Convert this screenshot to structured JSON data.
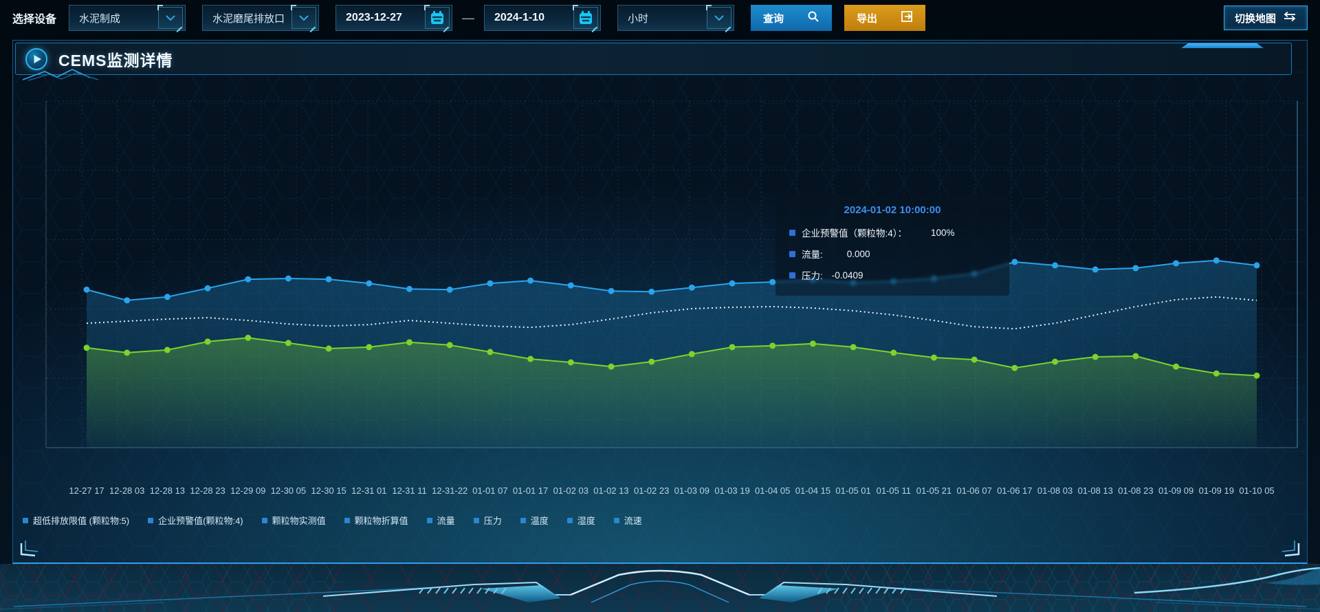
{
  "toolbar": {
    "device_label": "选择设备",
    "selects": [
      {
        "id": "device",
        "value": "水泥制成"
      },
      {
        "id": "outlet",
        "value": "水泥磨尾排放口"
      },
      {
        "id": "interval",
        "value": "小时"
      }
    ],
    "date_range": {
      "start": "2023-12-27",
      "end": "2024-1-10",
      "separator": "—"
    },
    "query_label": "查询",
    "export_label": "导出",
    "switch_map_label": "切换地图"
  },
  "panel": {
    "title": "CEMS监测详情"
  },
  "tooltip": {
    "title": "2024-01-02 10:00:00",
    "title_color": "#3e8ef0",
    "marker_color": "#2f6fd8",
    "items": [
      {
        "label": "企业预警值（颗粒物:4）：",
        "value": "100%"
      },
      {
        "label": "流量:",
        "value": "0.000"
      },
      {
        "label": "压力:",
        "value": "-0.0409"
      }
    ]
  },
  "chart_data": {
    "type": "line",
    "title": "",
    "xlabel": "",
    "ylabel": "",
    "ylim": [
      0,
      100
    ],
    "grid": true,
    "legend_position": "bottom",
    "y_axis_labels_visible": false,
    "note": "No y-axis tick labels are visible in the source; series values are estimated as percent of plot height.",
    "legend_entries": [
      "超低排放限值 (颗粒物:5)",
      "企业预警值(颗粒物:4)",
      "颗粒物实测值",
      "颗粒物折算值",
      "流量",
      "压力",
      "温度",
      "湿度",
      "流速"
    ],
    "categories": [
      "12-27 17",
      "12-28 03",
      "12-28 13",
      "12-28 23",
      "12-29 09",
      "12-30 05",
      "12-30 15",
      "12-31 01",
      "12-31 11",
      "12-31-22",
      "01-01 07",
      "01-01 17",
      "01-02 03",
      "01-02 13",
      "01-02 23",
      "01-03 09",
      "01-03 19",
      "01-04 05",
      "01-04 15",
      "01-05 01",
      "01-05 11",
      "01-05 21",
      "01-06 07",
      "01-06 17",
      "01-08 03",
      "01-08 13",
      "01-08 23",
      "01-09 09",
      "01-09 19",
      "01-10 05"
    ],
    "series": [
      {
        "name": "流量",
        "color": "#2aa3ec",
        "line_style": "solid",
        "markers": true,
        "area": true,
        "values": [
          45.6,
          42.5,
          43.5,
          46.0,
          48.6,
          48.8,
          48.6,
          47.4,
          45.8,
          45.6,
          47.4,
          48.2,
          46.8,
          45.2,
          45.0,
          46.2,
          47.4,
          47.8,
          48.4,
          47.6,
          48.0,
          48.8,
          50.2,
          53.6,
          52.6,
          51.4,
          51.8,
          53.2,
          54.0,
          52.6
        ]
      },
      {
        "name": "企业预警值(颗粒物:4)",
        "color": "#e9f1f7",
        "line_style": "dotted",
        "markers": false,
        "area": false,
        "values": [
          35.9,
          36.5,
          37.1,
          37.5,
          36.7,
          35.7,
          35.1,
          35.5,
          36.7,
          35.9,
          35.1,
          34.7,
          35.5,
          37.1,
          38.9,
          40.1,
          40.5,
          40.7,
          40.3,
          39.5,
          38.3,
          36.7,
          34.9,
          34.3,
          35.9,
          38.3,
          40.7,
          42.7,
          43.5,
          42.5
        ]
      },
      {
        "name": "压力",
        "color": "#7cd32c",
        "line_style": "solid",
        "markers": true,
        "area": true,
        "values": [
          28.8,
          27.4,
          28.2,
          30.6,
          31.7,
          30.2,
          28.6,
          29.0,
          30.4,
          29.6,
          27.6,
          25.6,
          24.6,
          23.4,
          24.8,
          27.0,
          29.0,
          29.4,
          30.0,
          29.0,
          27.4,
          26.0,
          25.4,
          23.0,
          24.8,
          26.2,
          26.4,
          23.4,
          21.4,
          20.8
        ]
      }
    ]
  }
}
